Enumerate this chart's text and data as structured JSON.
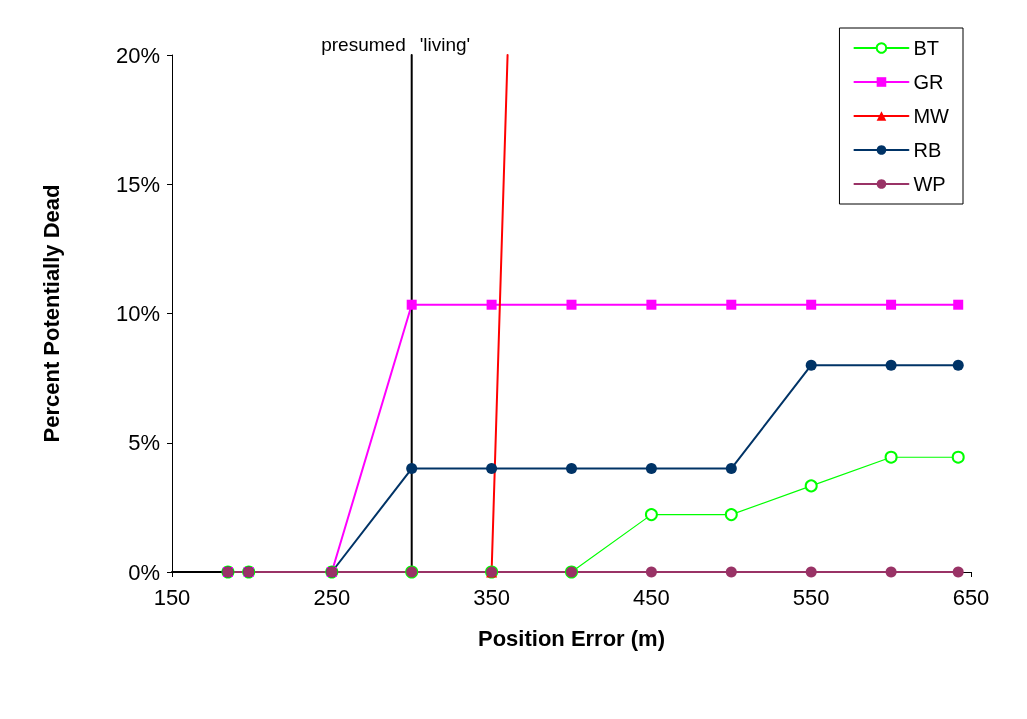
{
  "chart_data": {
    "type": "line",
    "xlabel": "Position Error (m)",
    "ylabel": "Percent Potentially Dead",
    "x": [
      185,
      198,
      250,
      300,
      350,
      400,
      450,
      500,
      550,
      600,
      642
    ],
    "xlim": [
      150,
      650
    ],
    "xticks": [
      150,
      250,
      350,
      450,
      550,
      650
    ],
    "ylim": [
      0,
      20
    ],
    "yticks": [
      {
        "value": 0,
        "label": "0%"
      },
      {
        "value": 5,
        "label": "5%"
      },
      {
        "value": 10,
        "label": "10%"
      },
      {
        "value": 15,
        "label": "15%"
      },
      {
        "value": 20,
        "label": "20%"
      }
    ],
    "grid": false,
    "legend": "top right",
    "line_style": "solid",
    "series": [
      {
        "type": "line",
        "x": [
          150,
          300,
          300
        ],
        "values": [
          0,
          0,
          20
        ],
        "color": "#000000",
        "marker": "none"
      },
      {
        "name": "BT",
        "color": "#00ff00",
        "marker": "circle",
        "values": [
          0,
          0,
          0,
          0,
          0,
          0,
          2.22,
          2.22,
          3.33,
          4.44,
          4.44
        ]
      },
      {
        "name": "GR",
        "color": "#ff00ff",
        "marker": "square",
        "values": [
          0,
          0,
          0,
          10.34,
          10.34,
          10.34,
          10.34,
          10.34,
          10.34,
          10.34,
          10.34
        ]
      },
      {
        "name": "MW",
        "color": "#ff0000",
        "marker": "triangle",
        "x": [
          350,
          360
        ],
        "values": [
          0,
          20
        ]
      },
      {
        "name": "RB",
        "color": "#003366",
        "marker": "circle",
        "values": [
          0,
          0,
          0,
          4,
          4,
          4,
          4,
          4,
          8,
          8,
          8
        ]
      },
      {
        "name": "WP",
        "color": "#993366",
        "marker": "circle",
        "values": [
          0,
          0,
          0,
          0,
          0,
          0,
          0,
          0,
          0,
          0,
          0
        ]
      }
    ],
    "annotations": [
      {
        "text": "presumed",
        "x": 300,
        "y": 20
      },
      {
        "text": "'living'",
        "x": 300,
        "y": 20
      }
    ]
  }
}
